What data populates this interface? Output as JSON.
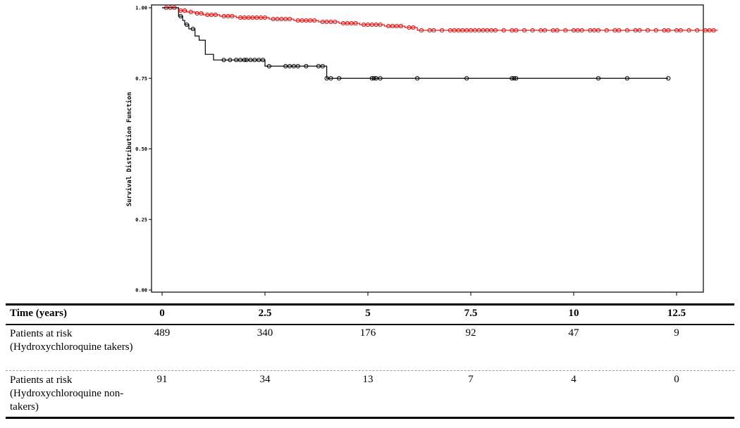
{
  "chart_data": {
    "type": "line",
    "chart_subtype": "kaplan-meier survival",
    "title": "",
    "xlabel": "",
    "ylabel": "Survival Distribution Function",
    "xlim": [
      0,
      13.5
    ],
    "ylim": [
      0,
      1
    ],
    "y_ticks": [
      "0.00",
      "0.25",
      "0.50",
      "0.75",
      "1.00"
    ],
    "grid": false,
    "series": [
      {
        "color": "#ff0000",
        "marker": "open-circle",
        "steps": [
          [
            0,
            1.0
          ],
          [
            0.4,
            0.99
          ],
          [
            0.6,
            0.985
          ],
          [
            0.8,
            0.98
          ],
          [
            1.0,
            0.975
          ],
          [
            1.4,
            0.97
          ],
          [
            1.8,
            0.965
          ],
          [
            2.6,
            0.96
          ],
          [
            3.2,
            0.955
          ],
          [
            3.8,
            0.95
          ],
          [
            4.3,
            0.945
          ],
          [
            4.8,
            0.94
          ],
          [
            5.4,
            0.935
          ],
          [
            5.9,
            0.93
          ],
          [
            6.2,
            0.92
          ],
          [
            13.5,
            0.92
          ]
        ],
        "censored": [
          0.1,
          0.2,
          0.3,
          0.45,
          0.55,
          0.7,
          0.85,
          0.95,
          1.1,
          1.2,
          1.3,
          1.5,
          1.6,
          1.7,
          1.9,
          2.0,
          2.1,
          2.2,
          2.3,
          2.4,
          2.5,
          2.7,
          2.8,
          2.9,
          3.0,
          3.1,
          3.3,
          3.4,
          3.5,
          3.6,
          3.7,
          3.9,
          4.0,
          4.1,
          4.2,
          4.4,
          4.5,
          4.6,
          4.7,
          4.9,
          5.0,
          5.1,
          5.2,
          5.3,
          5.5,
          5.6,
          5.7,
          5.8,
          6.0,
          6.1,
          6.3,
          6.5,
          6.6,
          6.8,
          7.0,
          7.1,
          7.2,
          7.3,
          7.4,
          7.5,
          7.6,
          7.7,
          7.8,
          7.9,
          8.0,
          8.1,
          8.3,
          8.5,
          8.6,
          8.8,
          9.0,
          9.2,
          9.3,
          9.5,
          9.6,
          9.8,
          10.0,
          10.1,
          10.2,
          10.4,
          10.5,
          10.6,
          10.8,
          11.0,
          11.1,
          11.3,
          11.5,
          11.6,
          11.8,
          12.0,
          12.2,
          12.3,
          12.5,
          12.6,
          12.8,
          13.0,
          13.2,
          13.3,
          13.4
        ]
      },
      {
        "color": "#000000",
        "marker": "open-circle",
        "steps": [
          [
            0,
            1.0
          ],
          [
            0.4,
            0.97
          ],
          [
            0.5,
            0.955
          ],
          [
            0.55,
            0.94
          ],
          [
            0.65,
            0.925
          ],
          [
            0.8,
            0.9
          ],
          [
            0.9,
            0.885
          ],
          [
            1.05,
            0.835
          ],
          [
            1.25,
            0.815
          ],
          [
            2.5,
            0.793
          ],
          [
            4.0,
            0.75
          ],
          [
            12.3,
            0.75
          ]
        ],
        "censored": [
          0.45,
          0.6,
          0.75,
          1.5,
          1.65,
          1.8,
          1.9,
          2.0,
          2.05,
          2.15,
          2.25,
          2.35,
          2.45,
          2.6,
          3.0,
          3.1,
          3.2,
          3.3,
          3.5,
          3.8,
          3.9,
          4.0,
          4.1,
          4.3,
          5.1,
          5.15,
          5.2,
          5.3,
          6.2,
          7.4,
          8.5,
          8.55,
          8.6,
          10.6,
          11.3,
          12.3
        ]
      }
    ],
    "risk_table": {
      "time_header": "Time (years)",
      "times": [
        "0",
        "2.5",
        "5",
        "7.5",
        "10",
        "12.5"
      ],
      "rows": [
        {
          "label": "Patients at risk (Hydroxychloroquine takers)",
          "values": [
            "489",
            "340",
            "176",
            "92",
            "47",
            "9"
          ]
        },
        {
          "label": "Patients at risk (Hydroxychloroquine non-takers)",
          "values": [
            "91",
            "34",
            "13",
            "7",
            "4",
            "0"
          ]
        }
      ]
    }
  }
}
